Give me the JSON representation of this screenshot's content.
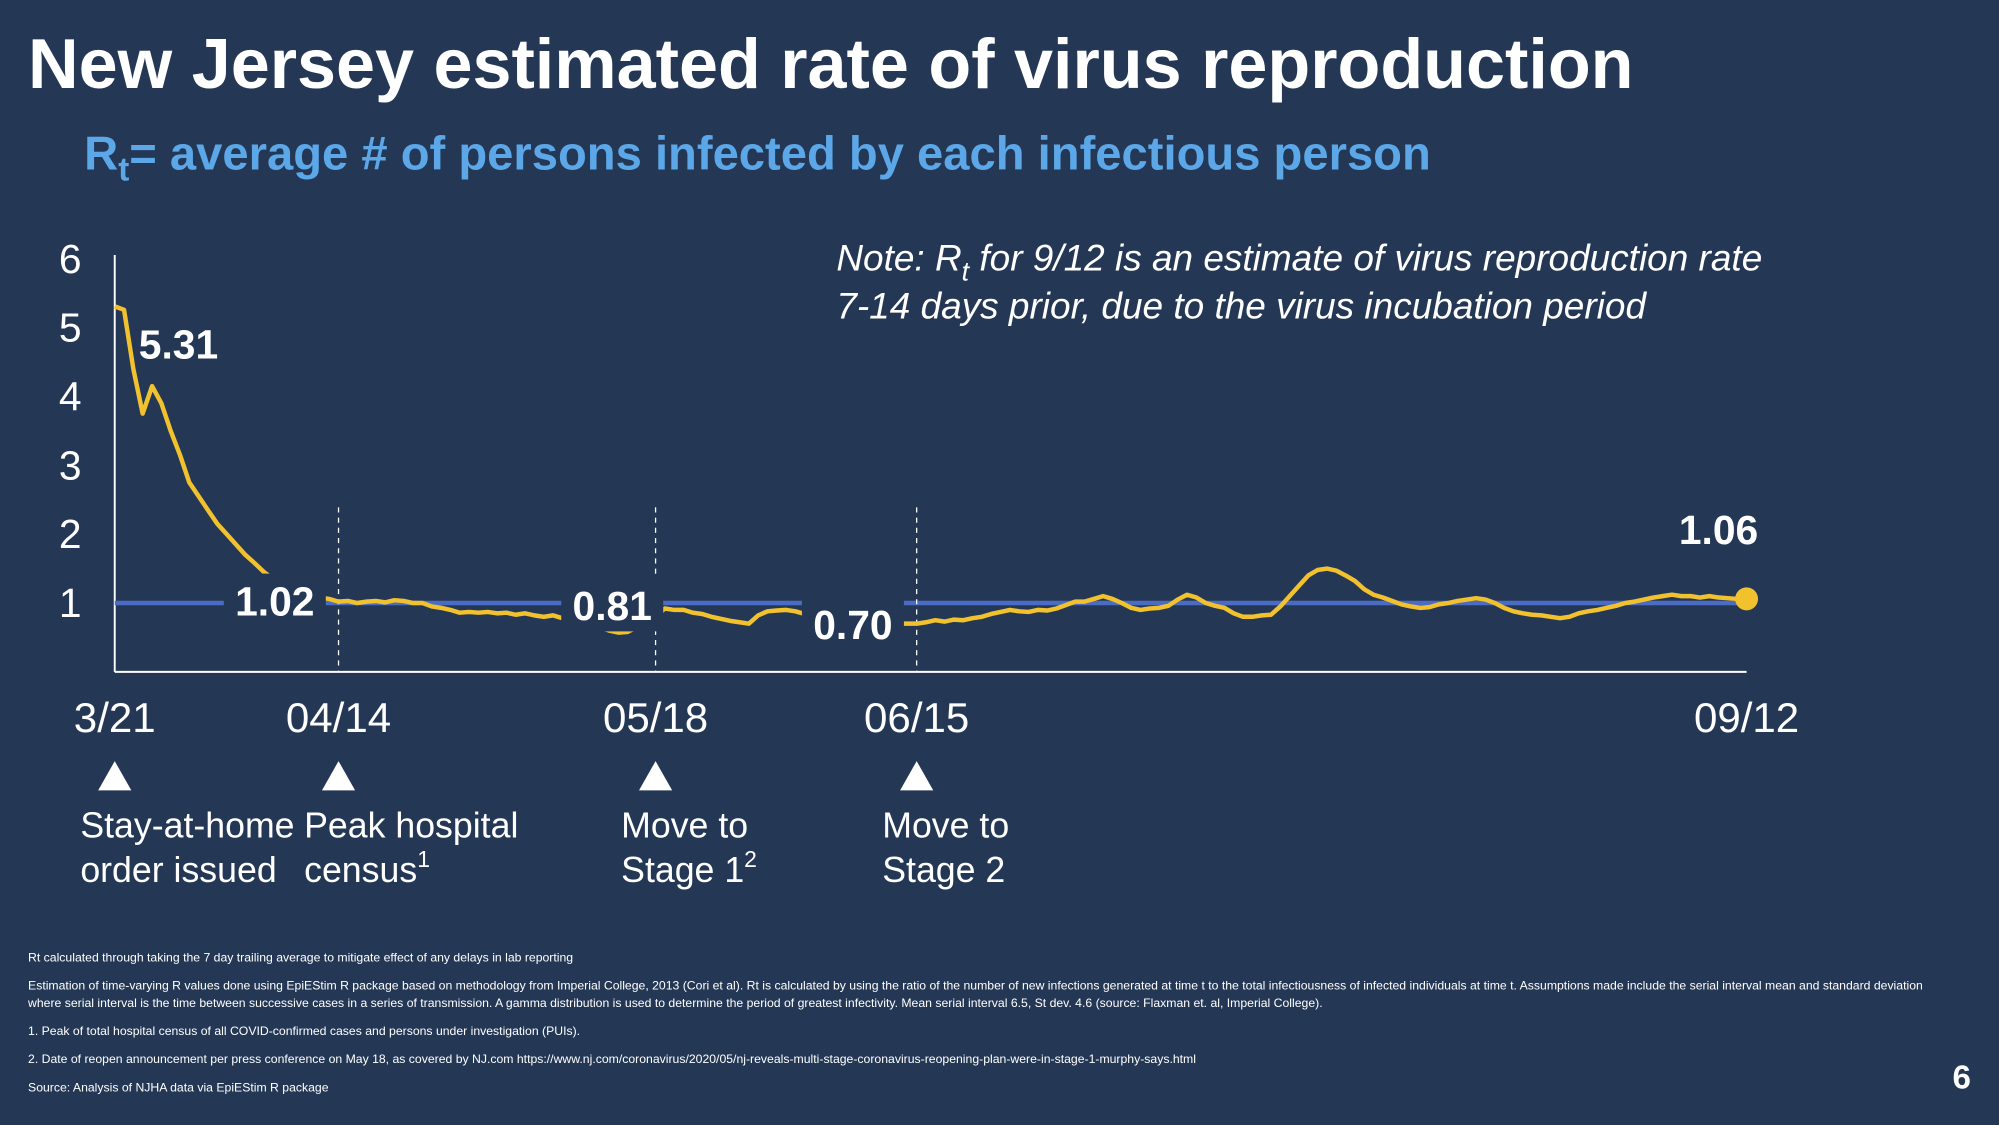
{
  "chart_data": {
    "type": "line",
    "title": "New Jersey estimated rate of virus reproduction",
    "subtitle": {
      "symbol": "R",
      "subscript": "t",
      "text": "= average # of persons infected by each infectious person"
    },
    "note": {
      "line1": [
        "Note: R",
        "t",
        " for 9/12 is an estimate of virus reproduction rate"
      ],
      "line2": "7-14 days prior, due to the virus incubation period"
    },
    "categories": [
      "3/21",
      null,
      null,
      null,
      null,
      null,
      null,
      null,
      null,
      null,
      null,
      null,
      null,
      null,
      null,
      null,
      null,
      null,
      null,
      null,
      null,
      null,
      null,
      null,
      "04/14",
      null,
      null,
      null,
      null,
      null,
      null,
      null,
      null,
      null,
      null,
      null,
      null,
      null,
      null,
      null,
      null,
      null,
      null,
      null,
      null,
      null,
      null,
      null,
      null,
      null,
      null,
      null,
      null,
      null,
      null,
      null,
      null,
      null,
      "05/18",
      null,
      null,
      null,
      null,
      null,
      null,
      null,
      null,
      null,
      null,
      null,
      null,
      null,
      null,
      null,
      null,
      null,
      null,
      null,
      null,
      null,
      null,
      null,
      null,
      null,
      null,
      null,
      "06/15",
      null,
      null,
      null,
      null,
      null,
      null,
      null,
      null,
      null,
      null,
      null,
      null,
      null,
      null,
      null,
      null,
      null,
      null,
      null,
      null,
      null,
      null,
      null,
      null,
      null,
      null,
      null,
      null,
      null,
      null,
      null,
      null,
      null,
      null,
      null,
      null,
      null,
      null,
      null,
      null,
      null,
      null,
      null,
      null,
      null,
      null,
      null,
      null,
      null,
      null,
      null,
      null,
      null,
      null,
      null,
      null,
      null,
      null,
      null,
      null,
      null,
      null,
      null,
      null,
      null,
      null,
      null,
      null,
      null,
      null,
      null,
      null,
      null,
      null,
      null,
      null,
      null,
      null,
      null,
      null,
      null,
      null,
      null,
      null,
      null,
      null,
      null,
      null,
      "09/12"
    ],
    "values": [
      5.31,
      5.26,
      4.4,
      3.75,
      4.15,
      3.9,
      3.5,
      3.15,
      2.75,
      2.55,
      2.35,
      2.15,
      2.0,
      1.85,
      1.7,
      1.58,
      1.45,
      1.35,
      1.27,
      1.2,
      1.14,
      1.1,
      1.08,
      1.06,
      1.02,
      1.03,
      1.0,
      1.02,
      1.03,
      1.01,
      1.04,
      1.03,
      1.0,
      1.0,
      0.95,
      0.93,
      0.9,
      0.86,
      0.87,
      0.86,
      0.87,
      0.85,
      0.86,
      0.83,
      0.85,
      0.82,
      0.8,
      0.82,
      0.78,
      0.76,
      0.74,
      0.72,
      0.65,
      0.6,
      0.57,
      0.58,
      0.65,
      0.75,
      0.81,
      0.92,
      0.9,
      0.9,
      0.86,
      0.84,
      0.8,
      0.77,
      0.74,
      0.72,
      0.7,
      0.82,
      0.88,
      0.89,
      0.9,
      0.88,
      0.84,
      0.85,
      0.82,
      0.8,
      0.78,
      0.76,
      0.75,
      0.73,
      0.72,
      0.71,
      0.7,
      0.7,
      0.7,
      0.72,
      0.75,
      0.73,
      0.76,
      0.75,
      0.78,
      0.8,
      0.84,
      0.87,
      0.9,
      0.88,
      0.87,
      0.9,
      0.89,
      0.92,
      0.97,
      1.02,
      1.02,
      1.06,
      1.1,
      1.06,
      1.0,
      0.93,
      0.9,
      0.92,
      0.93,
      0.96,
      1.05,
      1.12,
      1.08,
      1.0,
      0.96,
      0.93,
      0.85,
      0.8,
      0.8,
      0.82,
      0.83,
      0.95,
      1.1,
      1.25,
      1.4,
      1.48,
      1.5,
      1.47,
      1.4,
      1.32,
      1.2,
      1.12,
      1.08,
      1.03,
      0.98,
      0.95,
      0.93,
      0.94,
      0.98,
      1.0,
      1.03,
      1.05,
      1.07,
      1.05,
      1.0,
      0.93,
      0.88,
      0.85,
      0.83,
      0.82,
      0.8,
      0.78,
      0.8,
      0.85,
      0.88,
      0.9,
      0.93,
      0.96,
      1.0,
      1.02,
      1.05,
      1.08,
      1.1,
      1.12,
      1.1,
      1.1,
      1.08,
      1.1,
      1.08,
      1.07,
      1.06,
      1.06
    ],
    "value_labels": [
      "5.31",
      null,
      null,
      null,
      null,
      null,
      null,
      null,
      null,
      null,
      null,
      null,
      null,
      null,
      null,
      null,
      null,
      null,
      null,
      null,
      null,
      null,
      null,
      null,
      "1.02",
      null,
      null,
      null,
      null,
      null,
      null,
      null,
      null,
      null,
      null,
      null,
      null,
      null,
      null,
      null,
      null,
      null,
      null,
      null,
      null,
      null,
      null,
      null,
      null,
      null,
      null,
      null,
      null,
      null,
      null,
      null,
      null,
      null,
      "0.81",
      null,
      null,
      null,
      null,
      null,
      null,
      null,
      null,
      null,
      null,
      null,
      null,
      null,
      null,
      null,
      null,
      null,
      null,
      null,
      null,
      null,
      null,
      null,
      null,
      null,
      null,
      null,
      "0.70",
      null,
      null,
      null,
      null,
      null,
      null,
      null,
      null,
      null,
      null,
      null,
      null,
      null,
      null,
      null,
      null,
      null,
      null,
      null,
      null,
      null,
      null,
      null,
      null,
      null,
      null,
      null,
      null,
      null,
      null,
      null,
      null,
      null,
      null,
      null,
      null,
      null,
      null,
      null,
      null,
      null,
      null,
      null,
      null,
      null,
      null,
      null,
      null,
      null,
      null,
      null,
      null,
      null,
      null,
      null,
      null,
      null,
      null,
      null,
      null,
      null,
      null,
      null,
      null,
      null,
      null,
      null,
      null,
      null,
      null,
      null,
      null,
      null,
      null,
      null,
      null,
      null,
      null,
      null,
      null,
      null,
      null,
      null,
      null,
      null,
      null,
      null,
      null,
      "1.06"
    ],
    "color": "#f2c12e",
    "reference_line": {
      "value": 1,
      "color": "#4a6cc4"
    },
    "ylim": [
      0,
      6
    ],
    "yticks": [
      1,
      2,
      3,
      4,
      5,
      6
    ],
    "events": [
      {
        "text": [
          "Stay-at-home",
          "order issued"
        ]
      },
      {
        "text": [
          "Peak hospital",
          "census"
        ],
        "footnote": "1"
      },
      {
        "text": [
          "Move to",
          "Stage 1"
        ],
        "footnote": "2"
      },
      {
        "text": [
          "Move to",
          "Stage 2"
        ]
      }
    ]
  },
  "footnotes": [
    "Rt calculated through taking the 7 day trailing average to mitigate effect of any delays in lab reporting",
    "Estimation of time-varying R values done using EpiEStim R package based on methodology from Imperial College, 2013 (Cori et al).    Rt is calculated by using the ratio of the number of new infections generated at time t to the total infectiousness of infected individuals at time t.  Assumptions made include the serial interval mean and standard deviation where serial interval is the time between successive cases in a series of transmission.  A gamma distribution is used to determine the period of greatest infectivity.  Mean serial interval 6.5, St dev. 4.6 (source: Flaxman et. al, Imperial College).",
    "1. Peak of total hospital census of all COVID-confirmed cases and persons under investigation (PUIs).",
    "2. Date of reopen announcement per press conference on May 18, as covered by NJ.com https://www.nj.com/coronavirus/2020/05/nj-reveals-multi-stage-coronavirus-reopening-plan-were-in-stage-1-murphy-says.html",
    "Source: Analysis of NJHA data via EpiEStim R package"
  ],
  "page_number": "6"
}
